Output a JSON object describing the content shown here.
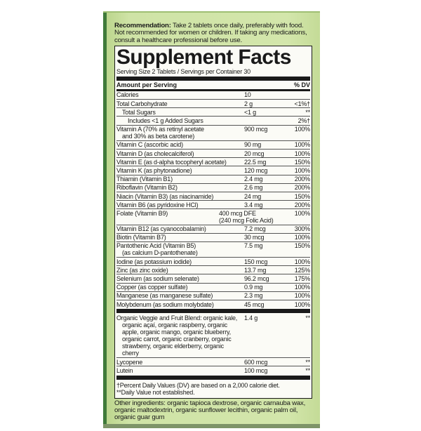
{
  "recommendation": {
    "label": "Recommendation:",
    "text": " Take 2 tablets once daily, preferably with food. Not recommended for women or children. If taking any medications, consult a healthcare professional before use."
  },
  "facts": {
    "title": "Supplement Facts",
    "serving": "Serving Size 2 Tablets / Servings per Container 30",
    "header_left": "Amount per Serving",
    "header_right": "% DV",
    "rows": [
      {
        "name": "Calories",
        "amount": "10",
        "dv": ""
      },
      {
        "name": "Total Carbohydrate",
        "amount": "2 g",
        "dv": "<1%†"
      },
      {
        "name": "Total Sugars",
        "amount": "<1 g",
        "dv": "**"
      },
      {
        "name": "Includes <1 g Added Sugars",
        "amount": "",
        "dv": "2%†"
      },
      {
        "name": "Vitamin A (70% as retinyl acetate",
        "name2": "and 30% as beta carotene)",
        "amount": "900 mcg",
        "dv": "100%"
      },
      {
        "name": "Vitamin C (ascorbic acid)",
        "amount": "90 mg",
        "dv": "100%"
      },
      {
        "name": "Vitamin D (as cholecalciferol)",
        "amount": "20 mcg",
        "dv": "100%"
      },
      {
        "name": "Vitamin E (as d-alpha tocopheryl acetate)",
        "amount": "22.5 mg",
        "dv": "150%"
      },
      {
        "name": "Vitamin K (as phytonadione)",
        "amount": "120 mcg",
        "dv": "100%"
      },
      {
        "name": "Thiamin (Vitamin B1)",
        "amount": "2.4 mg",
        "dv": "200%"
      },
      {
        "name": "Riboflavin (Vitamin B2)",
        "amount": "2.6 mg",
        "dv": "200%"
      },
      {
        "name": "Niacin (Vitamin B3) (as niacinamide)",
        "amount": "24 mg",
        "dv": "150%"
      },
      {
        "name": "Vitamin B6 (as pyridoxine HCl)",
        "amount": "3.4 mg",
        "dv": "200%"
      },
      {
        "name": "Folate (Vitamin B9)",
        "amount": "400 mcg DFE",
        "amount2": "(240 mcg Folic Acid)",
        "dv": "100%"
      },
      {
        "name": "Vitamin B12 (as cyanocobalamin)",
        "amount": "7.2 mcg",
        "dv": "300%"
      },
      {
        "name": "Biotin (Vitamin B7)",
        "amount": "30 mcg",
        "dv": "100%"
      },
      {
        "name": "Pantothenic Acid (Vitamin B5)",
        "name2": "(as calcium D-pantothenate)",
        "amount": "7.5 mg",
        "dv": "150%"
      },
      {
        "name": "Iodine (as potassium iodide)",
        "amount": "150 mcg",
        "dv": "100%"
      },
      {
        "name": "Zinc (as zinc oxide)",
        "amount": "13.7 mg",
        "dv": "125%"
      },
      {
        "name": "Selenium (as sodium selenate)",
        "amount": "96.2 mcg",
        "dv": "175%"
      },
      {
        "name": "Copper (as copper sulfate)",
        "amount": "0.9 mg",
        "dv": "100%"
      },
      {
        "name": "Manganese (as manganese sulfate)",
        "amount": "2.3 mg",
        "dv": "100%"
      },
      {
        "name": "Molybdenum (as sodium molybdate)",
        "amount": "45 mcg",
        "dv": "100%"
      }
    ],
    "blend": {
      "name": "Organic Veggie and Fruit Blend: organic kale,",
      "detail": "organic açaí, organic raspberry, organic apple, organic mango, organic blueberry, organic carrot, organic cranberry, organic strawberry, organic elderberry, organic cherry",
      "amount": "1.4 g",
      "dv": "**"
    },
    "extra_rows": [
      {
        "name": "Lycopene",
        "amount": "600 mcg",
        "dv": "**"
      },
      {
        "name": "Lutein",
        "amount": "100 mcg",
        "dv": "**"
      }
    ],
    "footnote1": "†Percent Daily Values (DV) are based on a 2,000 calorie diet.",
    "footnote2": "**Daily Value not established."
  },
  "other_ingredients": "Other ingredients: organic tapioca dextrose, organic carnauba wax, organic maltodextrin, organic sunflower lecithin, organic palm oil, organic guar gum",
  "colors": {
    "box_green": "#d3e6ab",
    "edge_green": "#3f7a3a",
    "label_bg": "#fbfbf6"
  }
}
